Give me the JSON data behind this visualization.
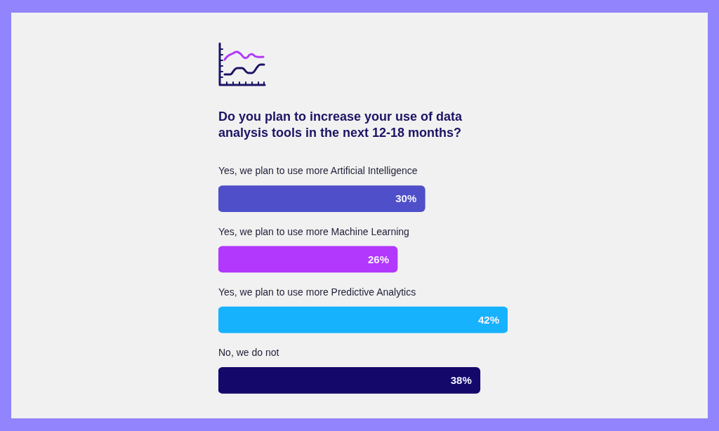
{
  "chart_data": {
    "type": "bar",
    "orientation": "horizontal",
    "title": "Do you plan to increase your use of data analysis tools in the next 12-18 months?",
    "categories": [
      "Yes, we plan to use more Artificial Intelligence",
      "Yes, we plan to use more Machine Learning",
      "Yes, we plan to use more Predictive Analytics",
      "No, we do not"
    ],
    "values": [
      30,
      26,
      42,
      38
    ],
    "colors": [
      "#4f4fc9",
      "#b138fc",
      "#17b2fe",
      "#14086a"
    ],
    "value_labels": [
      "30%",
      "26%",
      "42%",
      "38%"
    ],
    "tick_labels": "y"
  }
}
